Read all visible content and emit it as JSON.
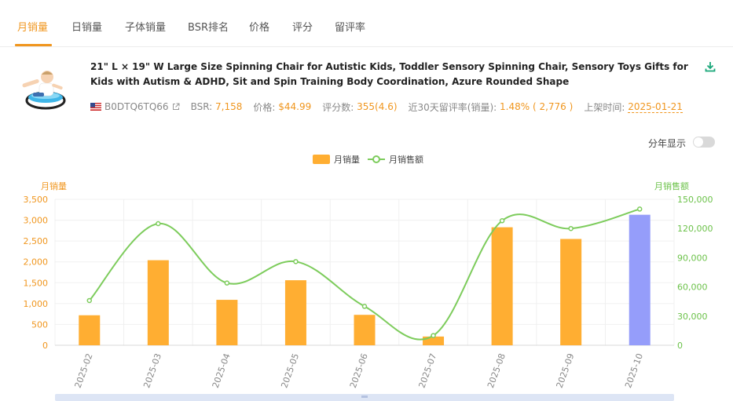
{
  "tabs": [
    {
      "label": "月销量",
      "active": true
    },
    {
      "label": "日销量",
      "active": false
    },
    {
      "label": "子体销量",
      "active": false
    },
    {
      "label": "BSR排名",
      "active": false
    },
    {
      "label": "价格",
      "active": false
    },
    {
      "label": "评分",
      "active": false
    },
    {
      "label": "留评率",
      "active": false
    }
  ],
  "product": {
    "title": "21\" L × 19\" W Large Size Spinning Chair for Autistic Kids, Toddler Sensory Spinning Chair, Sensory Toys Gifts for Kids with Autism & ADHD, Sit and Spin Training Body Coordination, Azure Rounded Shape",
    "asin": "B0DTQ6TQ66",
    "bsr_label": "BSR:",
    "bsr_value": "7,158",
    "price_label": "价格:",
    "price_value": "$44.99",
    "rating_label": "评分数:",
    "rating_value": "355(4.6)",
    "review_rate_label": "近30天留评率(销量):",
    "review_rate_value": "1.48% ( 2,776 )",
    "launch_label": "上架时间:",
    "launch_value": "2025-01-21",
    "flag_icon": "us-flag-icon",
    "download_icon": "download-icon"
  },
  "controls": {
    "year_display_label": "分年显示",
    "year_display_on": false
  },
  "legend": {
    "bar_label": "月销量",
    "line_label": "月销售额"
  },
  "chart_data": {
    "type": "bar",
    "categories": [
      "2025-02",
      "2025-03",
      "2025-04",
      "2025-05",
      "2025-06",
      "2025-07",
      "2025-08",
      "2025-09",
      "2025-10"
    ],
    "series": [
      {
        "name": "月销量",
        "type": "bar",
        "axis": "left",
        "values": [
          720,
          2040,
          1090,
          1560,
          730,
          210,
          2830,
          2550,
          3130
        ]
      },
      {
        "name": "月销售额",
        "type": "line",
        "axis": "right",
        "values": [
          46000,
          125000,
          64000,
          86000,
          40000,
          10000,
          128000,
          120000,
          140000
        ]
      }
    ],
    "ylabel": "月销量",
    "ylabel_right": "月销售额",
    "ylim": [
      0,
      3500
    ],
    "ylim_right": [
      0,
      150000
    ],
    "yticks": [
      "0",
      "500",
      "1,000",
      "1,500",
      "2,000",
      "2,500",
      "3,000",
      "3,500"
    ],
    "yticks_right": [
      "0",
      "30,000",
      "60,000",
      "90,000",
      "120,000",
      "150,000"
    ],
    "grid": true,
    "legend_position": "top-center",
    "colors": {
      "bar": "#ffae32",
      "bar_highlight": "#959dfa",
      "line": "#7dcc5c",
      "left_axis": "#f0961e",
      "right_axis": "#6cc24a"
    }
  }
}
